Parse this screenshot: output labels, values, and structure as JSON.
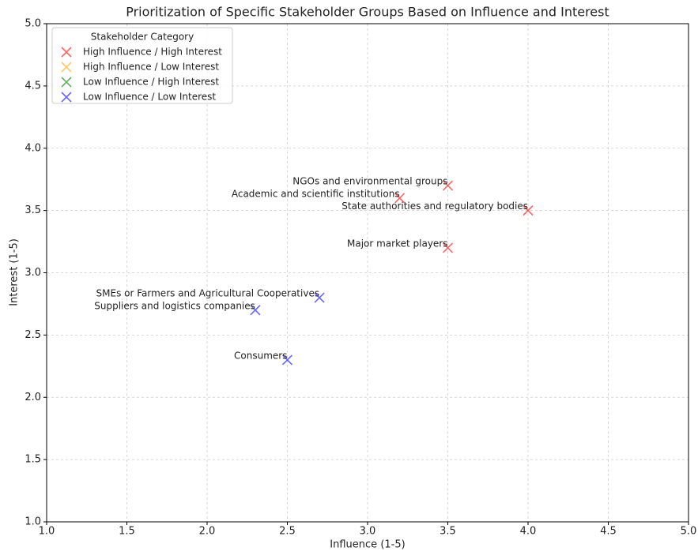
{
  "chart_data": {
    "type": "scatter",
    "title": "Prioritization of Specific Stakeholder Groups Based on Influence and Interest",
    "xlabel": "Influence (1-5)",
    "ylabel": "Interest (1-5)",
    "legend_title": "Stakeholder Category",
    "legend": "upper left",
    "grid": true,
    "xlim": [
      1.0,
      5.0
    ],
    "ylim": [
      1.0,
      5.0
    ],
    "xticks": [
      {
        "value": 1.0,
        "label": "1.0"
      },
      {
        "value": 1.5,
        "label": "1.5"
      },
      {
        "value": 2.0,
        "label": "2.0"
      },
      {
        "value": 2.5,
        "label": "2.5"
      },
      {
        "value": 3.0,
        "label": "3.0"
      },
      {
        "value": 3.5,
        "label": "3.5"
      },
      {
        "value": 4.0,
        "label": "4.0"
      },
      {
        "value": 4.5,
        "label": "4.5"
      },
      {
        "value": 5.0,
        "label": "5.0"
      }
    ],
    "yticks": [
      {
        "value": 1.0,
        "label": "1.0"
      },
      {
        "value": 1.5,
        "label": "1.5"
      },
      {
        "value": 2.0,
        "label": "2.0"
      },
      {
        "value": 2.5,
        "label": "2.5"
      },
      {
        "value": 3.0,
        "label": "3.0"
      },
      {
        "value": 3.5,
        "label": "3.5"
      },
      {
        "value": 4.0,
        "label": "4.0"
      },
      {
        "value": 4.5,
        "label": "4.5"
      },
      {
        "value": 5.0,
        "label": "5.0"
      }
    ],
    "series": [
      {
        "name": "High Influence / High Interest",
        "color": "#ff0000",
        "x": [
          3.5,
          3.2,
          4.0,
          3.5
        ],
        "values": [
          3.7,
          3.6,
          3.5,
          3.2
        ],
        "labels": [
          "NGOs and environmental groups",
          "Academic and scientific institutions",
          "State authorities and regulatory bodies",
          "Major market players"
        ]
      },
      {
        "name": "High Influence / Low Interest",
        "color": "#ffa500",
        "x": [],
        "values": [],
        "labels": []
      },
      {
        "name": "Low Influence / High Interest",
        "color": "#008000",
        "x": [],
        "values": [],
        "labels": []
      },
      {
        "name": "Low Influence / Low Interest",
        "color": "#0000ff",
        "x": [
          2.7,
          2.3,
          2.5
        ],
        "values": [
          2.8,
          2.7,
          2.3
        ],
        "labels": [
          "SMEs or Farmers and Agricultural Cooperatives",
          "Suppliers and logistics companies",
          "Consumers"
        ]
      }
    ]
  }
}
